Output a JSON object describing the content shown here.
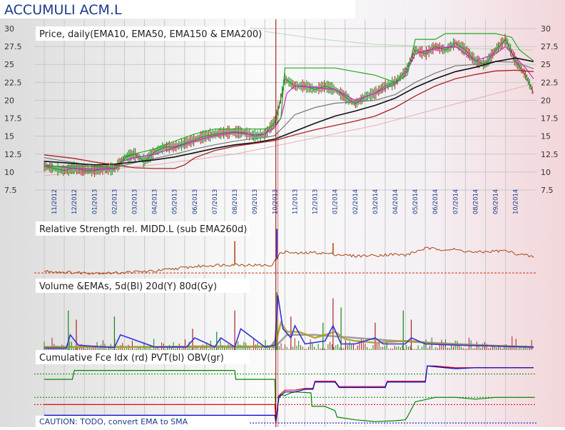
{
  "title": "ACCUMULI ACM.L",
  "caution": "CAUTION: TODO, convert EMA to SMA",
  "colors": {
    "price": "#2a8a2a",
    "ema10": "#cc22cc",
    "ema50": "#777777",
    "ema150": "#111111",
    "ema200": "#aa2222",
    "high_band": "#22aa22",
    "rs": "#aa4411",
    "rs_ref": "#cc3300",
    "vol_ema5": "#3333dd",
    "vol_ema20": "#aa9922",
    "vol_ema80": "#888888",
    "cfi": "#dd0000",
    "pvt": "#0000cc",
    "obv": "#008800",
    "marker": "#990000",
    "grid": "#c8c8c8"
  },
  "chart_data": [
    {
      "type": "line",
      "panel": "price",
      "title": "Price, daily(EMA10, EMA50, EMA150 & EMA200)",
      "y_ticks": [
        "30",
        "27.5",
        "25",
        "22.5",
        "20",
        "17.5",
        "15",
        "12.5",
        "10",
        "7.5"
      ],
      "ylim": [
        7.5,
        30
      ],
      "x_tick_labels": [
        "11/2012",
        "12/2012",
        "01/2013",
        "02/2013",
        "03/2013",
        "04/2013",
        "05/2013",
        "06/2013",
        "07/2013",
        "08/2013",
        "09/2013",
        "10/2013",
        "11/2013",
        "12/2013",
        "01/2014",
        "02/2014",
        "03/2014",
        "04/2014",
        "05/2014",
        "06/2014",
        "07/2014",
        "08/2014",
        "09/2014",
        "10/2014"
      ],
      "x_month_index": [
        0,
        1,
        2,
        3,
        4,
        5,
        6,
        7,
        8,
        9,
        10,
        11,
        12,
        13,
        14,
        15,
        16,
        17,
        18,
        19,
        20,
        21,
        22,
        23
      ],
      "series": [
        {
          "key": "price",
          "x": [
            -0.5,
            0,
            0.5,
            1,
            1.5,
            2,
            2.5,
            3,
            3.5,
            4,
            4.5,
            5,
            5.5,
            6,
            6.5,
            7,
            7.5,
            8,
            8.5,
            9,
            9.5,
            10,
            10.5,
            11,
            11.2,
            11.5,
            12,
            12.5,
            13,
            13.5,
            14,
            14.5,
            15,
            15.5,
            16,
            16.5,
            17,
            17.5,
            18,
            18.5,
            19,
            19.5,
            20,
            20.5,
            21,
            21.5,
            22,
            22.5,
            23,
            23.5,
            23.9
          ],
          "y": [
            10.8,
            10.5,
            10.2,
            10.6,
            10.2,
            10.2,
            10.5,
            10.4,
            12.0,
            12.5,
            11.5,
            12.8,
            13.5,
            13.5,
            14.0,
            14.5,
            15.0,
            15.3,
            15.5,
            15.6,
            15.5,
            15.0,
            15.3,
            17.0,
            19.0,
            23.0,
            22.0,
            22.0,
            21.5,
            22.0,
            21.5,
            20.5,
            19.5,
            20.5,
            21.0,
            22.0,
            22.5,
            24.0,
            27.0,
            26.5,
            27.5,
            27.0,
            28.0,
            27.0,
            25.5,
            25.0,
            27.0,
            28.5,
            25.5,
            23.5,
            21.0
          ]
        },
        {
          "key": "ema10",
          "x": [
            -0.5,
            1,
            2,
            3,
            3.5,
            4,
            5,
            6,
            7,
            8,
            9,
            10,
            10.5,
            11,
            11.3,
            11.6,
            12,
            13,
            14,
            15,
            16,
            17,
            17.5,
            18,
            19,
            20,
            21,
            22,
            22.5,
            23,
            23.5,
            23.9
          ],
          "y": [
            11.0,
            10.5,
            10.4,
            10.5,
            11.6,
            12.0,
            12.5,
            13.4,
            14.3,
            15.1,
            15.5,
            15.2,
            15.3,
            16.3,
            17.5,
            21.0,
            22.0,
            21.8,
            21.5,
            20.0,
            21.0,
            22.3,
            23.5,
            26.5,
            27.2,
            27.5,
            25.5,
            26.5,
            27.5,
            26.0,
            24.5,
            23.0
          ]
        },
        {
          "key": "ema50",
          "x": [
            -0.5,
            1,
            2,
            3,
            4,
            5,
            6,
            7,
            8,
            9,
            10,
            10.5,
            11,
            11.5,
            12,
            13,
            14,
            15,
            16,
            17,
            18,
            19,
            20,
            21,
            22,
            23,
            23.9
          ],
          "y": [
            12.0,
            11.3,
            10.7,
            10.6,
            11.3,
            11.9,
            12.5,
            13.2,
            13.8,
            14.3,
            14.7,
            14.8,
            15.1,
            16.5,
            18.0,
            19.0,
            19.6,
            19.8,
            20.0,
            20.8,
            22.5,
            23.8,
            24.8,
            25.0,
            25.4,
            25.3,
            24.4
          ]
        },
        {
          "key": "ema150",
          "x": [
            -0.5,
            1,
            2,
            3,
            4,
            5,
            6,
            7,
            8,
            9,
            10,
            11,
            12,
            13,
            14,
            15,
            16,
            17,
            18,
            19,
            20,
            21,
            22,
            23,
            23.9
          ],
          "y": [
            11.5,
            11.2,
            11.0,
            11.1,
            11.4,
            11.7,
            12.1,
            12.7,
            13.3,
            13.8,
            14.1,
            14.6,
            15.7,
            16.8,
            17.8,
            18.5,
            19.3,
            20.3,
            21.8,
            23.0,
            24.0,
            24.6,
            25.4,
            25.9,
            25.4
          ]
        },
        {
          "key": "ema200",
          "x": [
            -0.5,
            1,
            2,
            3,
            4,
            5,
            6,
            6.5,
            7,
            8,
            9,
            10,
            11,
            12,
            13,
            14,
            15,
            16,
            17,
            18,
            19,
            20,
            21,
            22,
            23,
            23.9
          ],
          "y": [
            12.4,
            11.9,
            11.4,
            11.0,
            10.6,
            10.5,
            10.5,
            11.0,
            12.0,
            13.0,
            13.6,
            14.0,
            14.4,
            15.2,
            15.9,
            16.5,
            17.1,
            17.8,
            19.0,
            20.6,
            22.0,
            23.0,
            23.6,
            24.1,
            24.2,
            24.0
          ]
        },
        {
          "key": "high_band",
          "x": [
            -0.5,
            2.5,
            3.4,
            3.5,
            5,
            6,
            7,
            8,
            9,
            10,
            10.5,
            11,
            11.3,
            11.5,
            13,
            14,
            15,
            16,
            17,
            17.6,
            18,
            19,
            19.5,
            20,
            21,
            22,
            22.8,
            23.2,
            23.9
          ],
          "y": [
            10.8,
            10.8,
            10.9,
            12.2,
            13.2,
            14.3,
            15.3,
            16.0,
            16.0,
            16.0,
            16.0,
            16.6,
            17.5,
            24.5,
            24.5,
            24.5,
            24.0,
            23.5,
            22.5,
            23.5,
            28.5,
            28.5,
            29.3,
            29.3,
            29.3,
            29.3,
            28.8,
            27.0,
            25.5
          ]
        }
      ]
    },
    {
      "type": "line",
      "panel": "relative_strength",
      "title": "Relative Strength rel. MIDD.L (sub EMA260d)",
      "x": [
        -0.5,
        1,
        2,
        3,
        4,
        5,
        6,
        7,
        8,
        9,
        10,
        10.8,
        11,
        11.3,
        11.6,
        12,
        13,
        14,
        15,
        16,
        17,
        17.5,
        18,
        18.5,
        19,
        20,
        21,
        22,
        22.5,
        23,
        23.5,
        23.9
      ],
      "y": [
        0.5,
        0.1,
        0,
        0,
        0.3,
        0.5,
        1.2,
        1.8,
        2.2,
        2.4,
        2.2,
        2.1,
        3.3,
        5.8,
        6.0,
        5.5,
        5.8,
        5.3,
        4.8,
        5.0,
        5.3,
        5.0,
        6.0,
        7.0,
        6.8,
        6.6,
        5.8,
        6.2,
        6.3,
        5.5,
        5.0,
        4.5
      ],
      "spikes": [
        {
          "x": 9,
          "y": 9
        },
        {
          "x": 11.1,
          "y": 12.5
        },
        {
          "x": 13.9,
          "y": 8.5
        }
      ],
      "reference": 0,
      "ylim": [
        -2,
        13
      ]
    },
    {
      "type": "bar",
      "panel": "volume",
      "title": "Volume &EMAs, 5d(Bl) 20d(Y) 80d(Gy)",
      "spikes": [
        {
          "x": 0.7,
          "v": 6.5
        },
        {
          "x": 1.1,
          "v": 5.0
        },
        {
          "x": 3.0,
          "v": 5.5
        },
        {
          "x": 6.9,
          "v": 3.5
        },
        {
          "x": 8.1,
          "v": 3.0
        },
        {
          "x": 9.0,
          "v": 6.5
        },
        {
          "x": 11.1,
          "v": 9.5
        },
        {
          "x": 11.8,
          "v": 5.5
        },
        {
          "x": 13.4,
          "v": 4.5
        },
        {
          "x": 13.9,
          "v": 8.5
        },
        {
          "x": 14.3,
          "v": 7.0
        },
        {
          "x": 16.0,
          "v": 4.5
        },
        {
          "x": 17.4,
          "v": 6.5
        },
        {
          "x": 17.8,
          "v": 5.0
        }
      ],
      "ema5": {
        "x": [
          -0.5,
          0.6,
          0.8,
          1.2,
          2.5,
          3.0,
          3.3,
          5.0,
          6.6,
          7.0,
          8.0,
          8.3,
          9.0,
          9.3,
          10.5,
          11.0,
          11.15,
          11.4,
          11.8,
          12.0,
          12.5,
          13.5,
          13.9,
          14.3,
          15.0,
          16.0,
          16.4,
          17.5,
          17.8,
          18.5,
          20.0,
          23.9
        ],
        "v": [
          0.3,
          0.3,
          2.5,
          0.8,
          0.5,
          0.4,
          2.5,
          0.5,
          0.5,
          2.0,
          0.5,
          2.0,
          0.5,
          3.5,
          0.5,
          0.8,
          9.0,
          3.5,
          2.0,
          4.0,
          1.0,
          1.5,
          4.0,
          1.0,
          1.0,
          2.0,
          1.0,
          1.0,
          2.0,
          1.0,
          0.8,
          0.5
        ]
      },
      "ema20": {
        "x": [
          -0.5,
          1,
          3,
          5,
          7,
          9,
          10,
          10.8,
          11.1,
          11.3,
          11.6,
          12.2,
          13,
          14,
          14.5,
          15,
          16,
          17.5,
          18,
          19,
          20,
          23.9
        ],
        "v": [
          0.5,
          0.5,
          0.5,
          0.5,
          0.6,
          0.6,
          0.6,
          0.6,
          2.0,
          4.5,
          3.0,
          3.0,
          2.0,
          3.0,
          1.8,
          1.5,
          1.2,
          1.5,
          1.4,
          1.0,
          0.9,
          0.5
        ]
      },
      "ema80": {
        "x": [
          -0.5,
          5,
          10,
          11,
          11.3,
          11.6,
          13,
          15,
          17,
          20,
          23.9
        ],
        "v": [
          0.5,
          0.5,
          0.5,
          0.5,
          1.5,
          2.5,
          2.5,
          2.0,
          1.5,
          1.0,
          0.4
        ]
      },
      "ylim": [
        0,
        10
      ]
    },
    {
      "type": "line",
      "panel": "cumulative",
      "title": "Cumulative Fce Idx (rd) PVT(bl) OBV(gr)",
      "obv": {
        "x": [
          -0.5,
          0.9,
          1.0,
          9.0,
          9.05,
          11.0,
          11.05,
          11.2,
          11.3,
          11.5,
          11.8,
          12.0,
          12.8,
          12.85,
          13.5,
          14.0,
          14.1,
          15.0,
          16.0,
          17.0,
          17.5,
          17.6,
          18.0,
          19.0,
          20.0,
          21.0,
          22.0,
          23.0,
          23.9
        ],
        "y": [
          5,
          5,
          6,
          6,
          5,
          5,
          0.3,
          3.0,
          3.3,
          3.2,
          3.5,
          3.6,
          3.5,
          2.0,
          2.0,
          1.5,
          0.8,
          0.5,
          0.3,
          0.4,
          0.5,
          0.8,
          2.5,
          3.0,
          3.0,
          2.8,
          3.0,
          3.0,
          3.0
        ]
      },
      "cfi": {
        "x": [
          -0.5,
          5,
          9.0,
          11.0,
          11.05,
          11.2,
          11.5,
          12.0,
          12.5,
          12.9,
          13.0,
          14.0,
          14.2,
          15.0,
          16.0,
          16.5,
          16.6,
          17.0,
          18.0,
          18.5,
          18.6,
          19.0,
          20.0,
          21.0,
          22.0,
          23.9
        ],
        "y": [
          2.2,
          2.2,
          2.2,
          2.2,
          0.3,
          3.2,
          3.8,
          3.8,
          4.0,
          4.0,
          4.8,
          4.8,
          4.2,
          4.2,
          4.2,
          4.2,
          4.8,
          4.8,
          4.8,
          4.8,
          6.5,
          6.5,
          6.3,
          6.3,
          6.3,
          6.3
        ]
      },
      "pvt": {
        "x": [
          -0.5,
          5,
          9.0,
          11.0,
          11.05,
          11.2,
          11.5,
          12.0,
          12.5,
          12.9,
          13.0,
          14.0,
          14.2,
          15.0,
          16.0,
          16.5,
          16.6,
          17.0,
          18.0,
          18.5,
          18.6,
          19.0,
          20.0,
          21.0,
          22.0,
          23.9
        ],
        "y": [
          1.0,
          1.0,
          1.0,
          1.0,
          0.2,
          3.0,
          3.6,
          3.6,
          3.9,
          3.9,
          4.7,
          4.7,
          4.1,
          4.1,
          4.1,
          4.1,
          4.7,
          4.7,
          4.7,
          4.7,
          6.5,
          6.4,
          6.2,
          6.3,
          6.3,
          6.3
        ]
      },
      "ylim": [
        0,
        7
      ]
    }
  ]
}
